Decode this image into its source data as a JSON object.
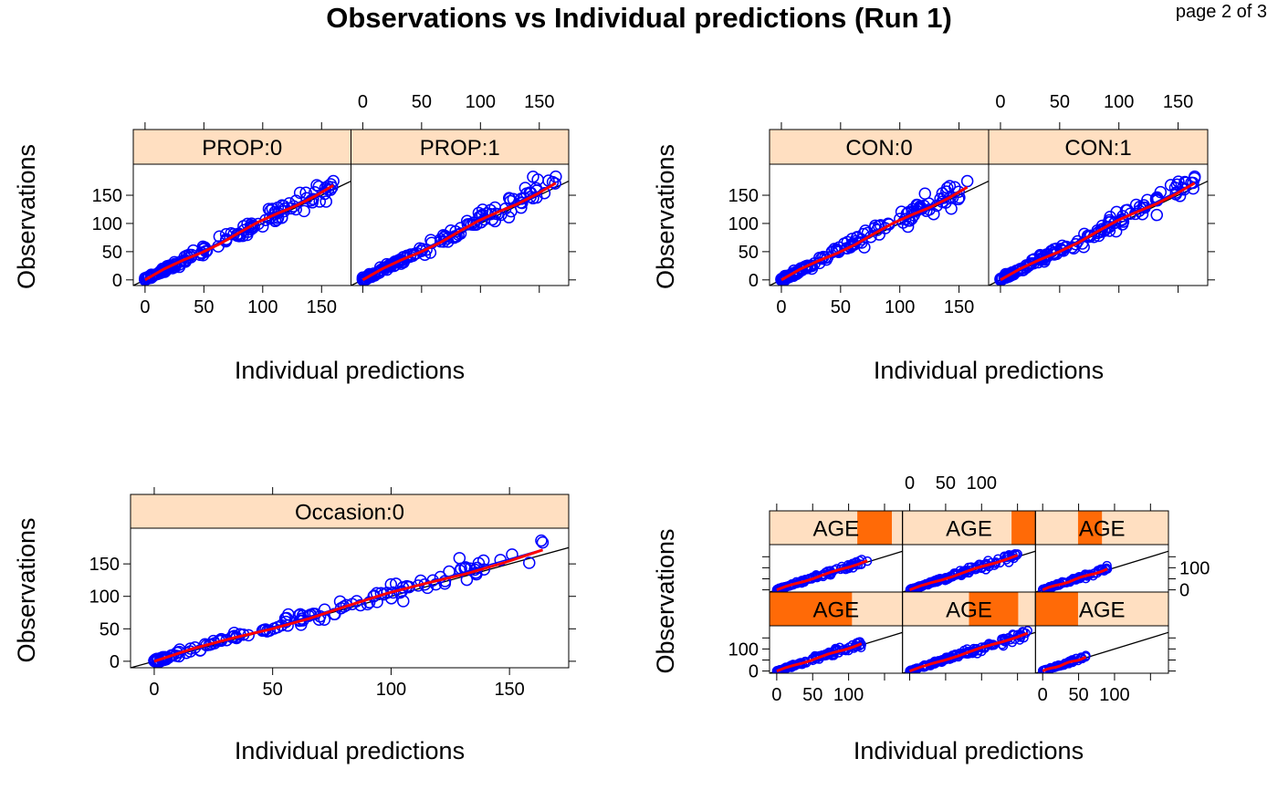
{
  "title": "Observations vs Individual predictions (Run 1)",
  "page_label": "page 2 of 3",
  "colors": {
    "strip": "#ffdfc1",
    "strip_level": "#ff6a07",
    "points": "#0000ff",
    "smooth": "#ff0000",
    "identity": "#000000"
  },
  "chart_data": [
    {
      "type": "scatter",
      "name": "PROP",
      "xlabel": "Individual predictions",
      "ylabel": "Observations",
      "xlim": [
        -10,
        175
      ],
      "ylim": [
        -10,
        205
      ],
      "xticks": [
        0,
        50,
        100,
        150
      ],
      "yticks": [
        0,
        50,
        100,
        150
      ],
      "panels": [
        {
          "strip": "PROP:0",
          "shade": null,
          "xmax": 160,
          "ymax": 175
        },
        {
          "strip": "PROP:1",
          "shade": null,
          "xmax": 164,
          "ymax": 183
        }
      ],
      "overlays": [
        "identity line y=x",
        "linear regression",
        "loess smooth"
      ]
    },
    {
      "type": "scatter",
      "name": "CON",
      "xlabel": "Individual predictions",
      "ylabel": "Observations",
      "xlim": [
        -10,
        175
      ],
      "ylim": [
        -10,
        205
      ],
      "xticks": [
        0,
        50,
        100,
        150
      ],
      "yticks": [
        0,
        50,
        100,
        150
      ],
      "panels": [
        {
          "strip": "CON:0",
          "shade": null,
          "xmax": 157,
          "ymax": 175
        },
        {
          "strip": "CON:1",
          "shade": null,
          "xmax": 164,
          "ymax": 183
        }
      ],
      "overlays": [
        "identity line y=x",
        "linear regression",
        "loess smooth"
      ]
    },
    {
      "type": "scatter",
      "name": "Occasion",
      "xlabel": "Individual predictions",
      "ylabel": "Observations",
      "xlim": [
        -10,
        175
      ],
      "ylim": [
        -10,
        205
      ],
      "xticks": [
        0,
        50,
        100,
        150
      ],
      "yticks": [
        0,
        50,
        100,
        150
      ],
      "panels": [
        {
          "strip": "Occasion:0",
          "shade": null,
          "xmax": 164,
          "ymax": 183
        }
      ],
      "overlays": [
        "identity line y=x",
        "linear regression",
        "loess smooth"
      ]
    },
    {
      "type": "scatter",
      "name": "AGE",
      "xlabel": "Individual predictions",
      "ylabel": "Observations",
      "xlim": [
        -10,
        175
      ],
      "ylim": [
        -10,
        205
      ],
      "xticks": [
        0,
        50,
        100
      ],
      "yticks": [
        0,
        100
      ],
      "panels": [
        {
          "strip": "AGE",
          "shade": [
            0.0,
            0.62
          ],
          "xmax": 118,
          "ymax": 120
        },
        {
          "strip": "AGE",
          "shade": [
            0.5,
            0.87
          ],
          "xmax": 164,
          "ymax": 183
        },
        {
          "strip": "AGE",
          "shade": [
            0.0,
            0.32
          ],
          "xmax": 60,
          "ymax": 70
        },
        {
          "strip": "AGE",
          "shade": [
            0.66,
            0.92
          ],
          "xmax": 126,
          "ymax": 130
        },
        {
          "strip": "AGE",
          "shade": [
            0.82,
            1.0
          ],
          "xmax": 150,
          "ymax": 162
        },
        {
          "strip": "AGE",
          "shade": [
            0.32,
            0.5
          ],
          "xmax": 90,
          "ymax": 95
        }
      ],
      "overlays": [
        "identity line y=x",
        "linear regression",
        "loess smooth"
      ]
    }
  ]
}
